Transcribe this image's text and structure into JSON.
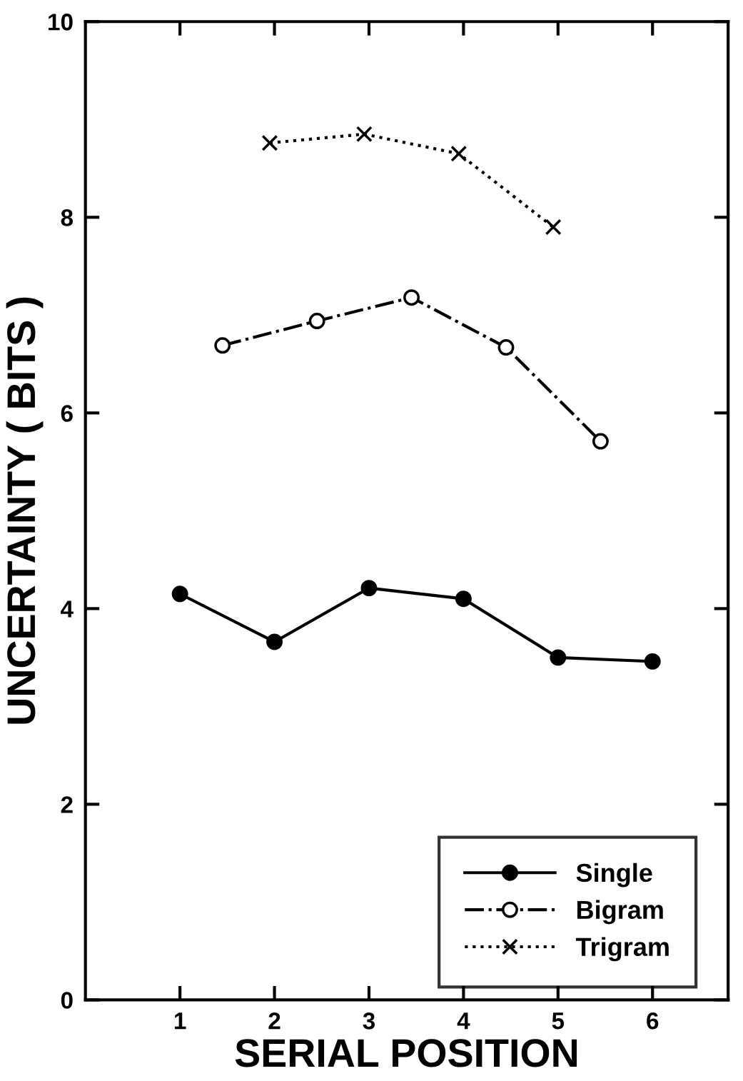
{
  "chart_data": {
    "type": "line",
    "xlabel": "SERIAL POSITION",
    "ylabel": "UNCERTAINTY ( BITS )",
    "xlim": [
      0,
      6.8
    ],
    "xticks": [
      1,
      2,
      3,
      4,
      5,
      6
    ],
    "ylim": [
      0,
      10
    ],
    "yticks": [
      0,
      2,
      4,
      6,
      8,
      10
    ],
    "grid": false,
    "legend": "bottom right",
    "series": [
      {
        "name": "Single",
        "color": "#000000",
        "marker": "circle",
        "line_style": "solid",
        "x": [
          1,
          2,
          3,
          4,
          5,
          6
        ],
        "values": [
          4.15,
          3.66,
          4.21,
          4.1,
          3.5,
          3.46
        ]
      },
      {
        "name": "Bigram",
        "color": "#000000",
        "marker": "circle",
        "line_style": "dashdot",
        "x": [
          1.45,
          2.45,
          3.45,
          4.45,
          5.45
        ],
        "values": [
          6.69,
          6.94,
          7.18,
          6.67,
          5.71
        ]
      },
      {
        "name": "Trigram",
        "color": "#000000",
        "marker": "cross",
        "line_style": "dotted",
        "x": [
          1.95,
          2.95,
          3.95,
          4.95
        ],
        "values": [
          8.76,
          8.85,
          8.65,
          7.9
        ]
      }
    ]
  }
}
